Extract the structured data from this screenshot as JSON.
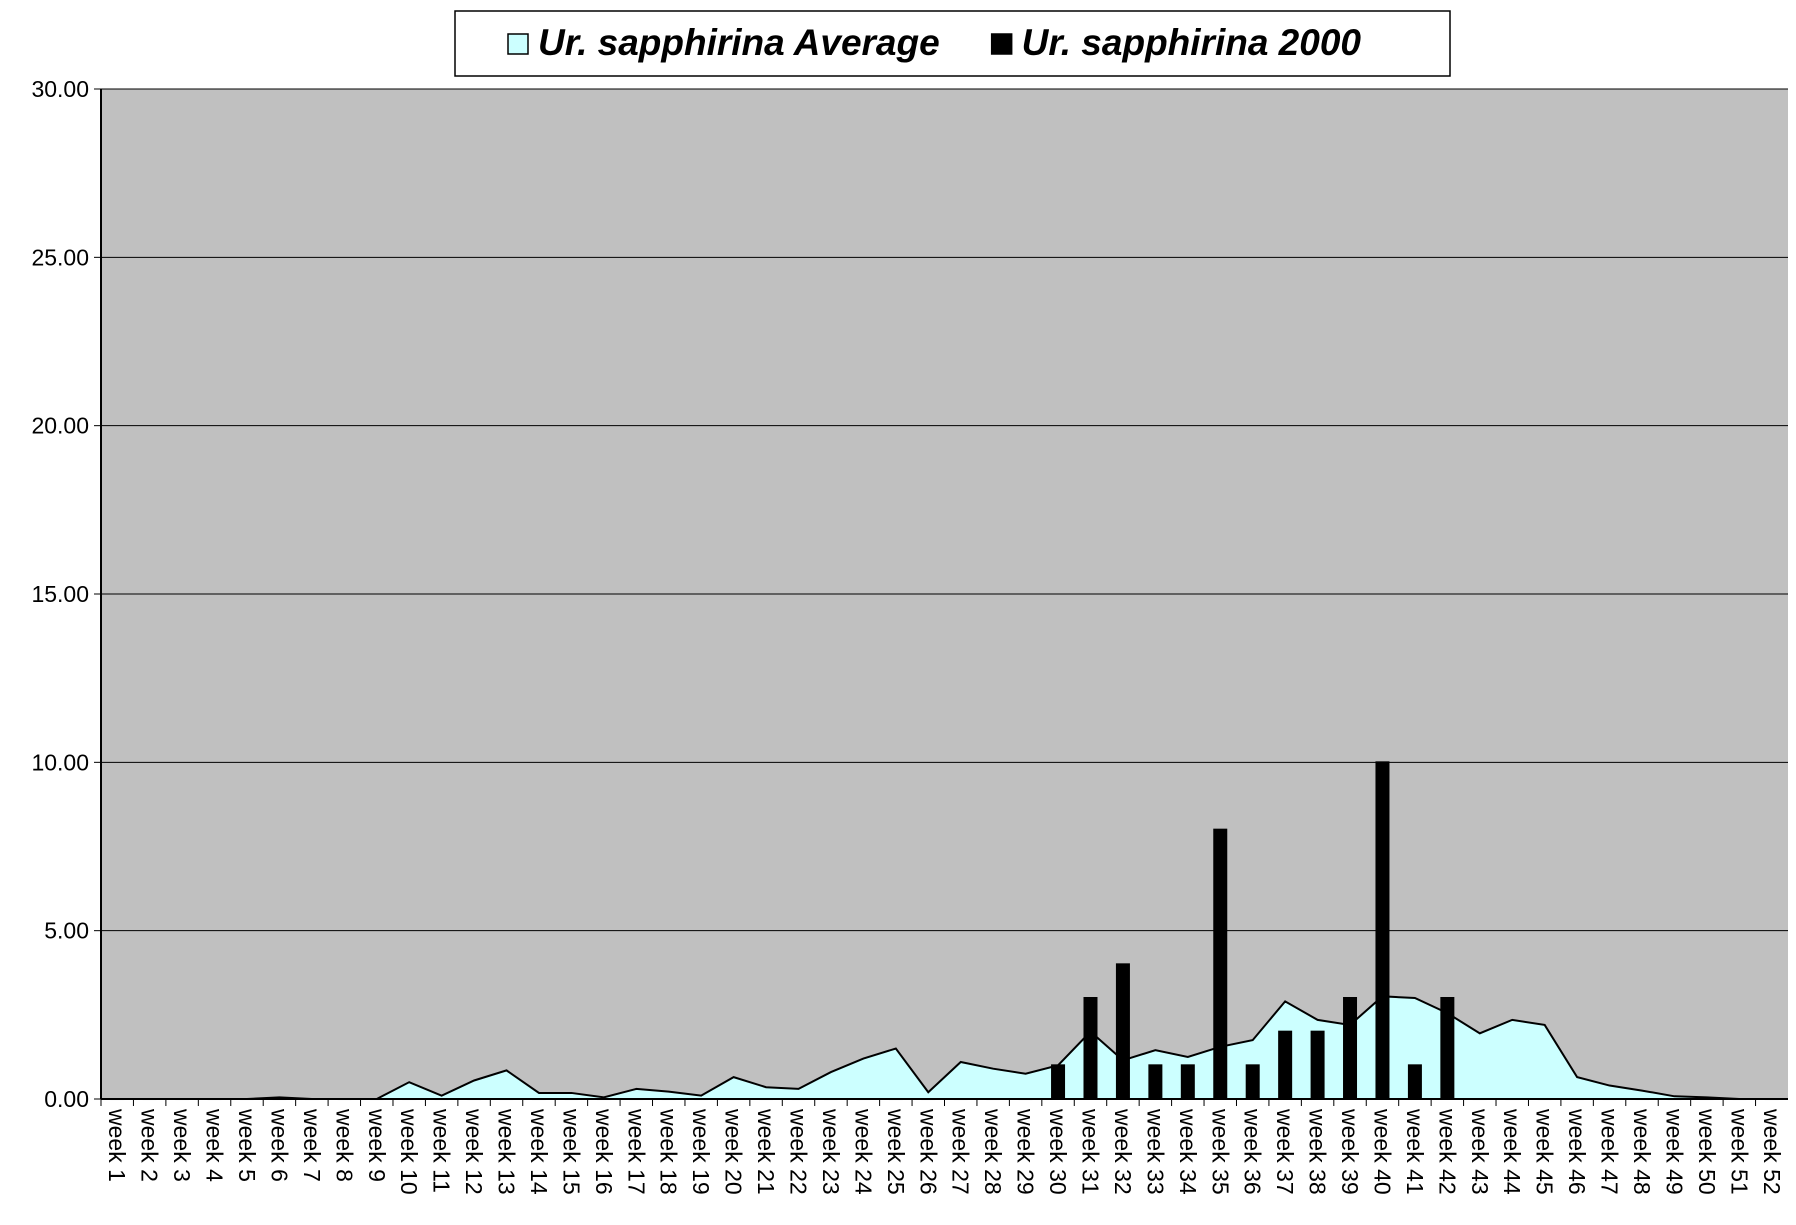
{
  "chart_data": {
    "type": "bar",
    "categories": [
      "week 1",
      "week 2",
      "week 3",
      "week 4",
      "week 5",
      "week 6",
      "week 7",
      "week 8",
      "week 9",
      "week 10",
      "week 11",
      "week 12",
      "week 13",
      "week 14",
      "week 15",
      "week 16",
      "week 17",
      "week 18",
      "week 19",
      "week 20",
      "week 21",
      "week 22",
      "week 23",
      "week 24",
      "week 25",
      "week 26",
      "week 27",
      "week 28",
      "week 29",
      "week 30",
      "week 31",
      "week 32",
      "week 33",
      "week 34",
      "week 35",
      "week 36",
      "week 37",
      "week 38",
      "week 39",
      "week 40",
      "week 41",
      "week 42",
      "week 43",
      "week 44",
      "week 45",
      "week 46",
      "week 47",
      "week 48",
      "week 49",
      "week 50",
      "week 51",
      "week 52"
    ],
    "series": [
      {
        "name": "Ur. sapphirina Average",
        "type": "area",
        "color": "#ccffff",
        "values": [
          0,
          0,
          0,
          0,
          0,
          0.05,
          0,
          0,
          0,
          0.5,
          0.1,
          0.55,
          0.85,
          0.18,
          0.18,
          0.05,
          0.3,
          0.22,
          0.1,
          0.65,
          0.35,
          0.3,
          0.8,
          1.2,
          1.5,
          0.2,
          1.1,
          0.9,
          0.75,
          1.0,
          2.0,
          1.15,
          1.45,
          1.25,
          1.55,
          1.75,
          2.9,
          2.35,
          2.2,
          3.05,
          3.0,
          2.55,
          1.95,
          2.35,
          2.2,
          0.65,
          0.4,
          0.25,
          0.08,
          0.05,
          0,
          0
        ]
      },
      {
        "name": "Ur. sapphirina 2000",
        "type": "bar",
        "color": "#000000",
        "values": [
          0,
          0,
          0,
          0,
          0,
          0,
          0,
          0,
          0,
          0,
          0,
          0,
          0,
          0,
          0,
          0,
          0,
          0,
          0,
          0,
          0,
          0,
          0,
          0,
          0,
          0,
          0,
          0,
          0,
          1,
          3,
          4,
          1,
          1,
          8,
          1,
          2,
          2,
          3,
          10,
          1,
          3,
          0,
          0,
          0,
          0,
          0,
          0,
          0,
          0,
          0,
          0
        ]
      }
    ],
    "ylim": [
      0,
      30
    ],
    "yticks": [
      {
        "value": 0,
        "label": "0.00"
      },
      {
        "value": 5,
        "label": "5.00"
      },
      {
        "value": 10,
        "label": "10.00"
      },
      {
        "value": 15,
        "label": "15.00"
      },
      {
        "value": 20,
        "label": "20.00"
      },
      {
        "value": 25,
        "label": "25.00"
      },
      {
        "value": 30,
        "label": "30.00"
      }
    ],
    "grid": true,
    "plot_background": "#c0c0c0",
    "legend": "top"
  }
}
